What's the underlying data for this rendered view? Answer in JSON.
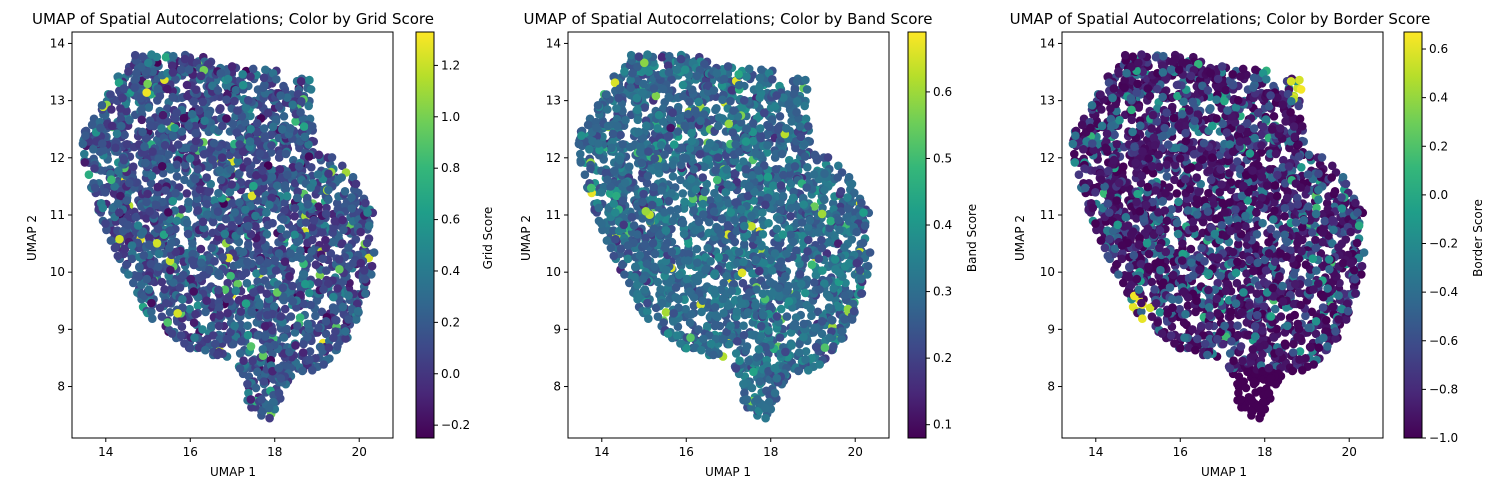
{
  "colormap": "viridis",
  "viridis_stops": [
    "#440154",
    "#482878",
    "#3e4989",
    "#31688e",
    "#26828e",
    "#1f9e89",
    "#35b779",
    "#6ece58",
    "#b5de2b",
    "#fde725"
  ],
  "chart_data": [
    {
      "type": "scatter",
      "title": "UMAP of Spatial Autocorrelations; Color by Grid Score",
      "xlabel": "UMAP 1",
      "ylabel": "UMAP 2",
      "xlim": [
        13.2,
        20.8
      ],
      "ylim": [
        7.1,
        14.2
      ],
      "xticks": [
        14,
        16,
        18,
        20
      ],
      "yticks": [
        8,
        9,
        10,
        11,
        12,
        13,
        14
      ],
      "colorbar": {
        "label": "Grid Score",
        "range": [
          -0.25,
          1.33
        ],
        "ticks": [
          -0.2,
          0.0,
          0.2,
          0.4,
          0.6,
          0.8,
          1.0,
          1.2
        ]
      },
      "n_points": 2600,
      "point_color_distribution": {
        "typical": 0.15,
        "spread": 0.15,
        "min": -0.25,
        "max": 1.33
      }
    },
    {
      "type": "scatter",
      "title": "UMAP of Spatial Autocorrelations; Color by Band Score",
      "xlabel": "UMAP 1",
      "ylabel": "UMAP 2",
      "xlim": [
        13.2,
        20.8
      ],
      "ylim": [
        7.1,
        14.2
      ],
      "xticks": [
        14,
        16,
        18,
        20
      ],
      "yticks": [
        8,
        9,
        10,
        11,
        12,
        13,
        14
      ],
      "colorbar": {
        "label": "Band Score",
        "range": [
          0.08,
          0.69
        ],
        "ticks": [
          0.1,
          0.2,
          0.3,
          0.4,
          0.5,
          0.6
        ]
      },
      "n_points": 2600,
      "point_color_distribution": {
        "typical": 0.29,
        "spread": 0.05,
        "min": 0.08,
        "max": 0.69
      }
    },
    {
      "type": "scatter",
      "title": "UMAP of Spatial Autocorrelations; Color by Border Score",
      "xlabel": "UMAP 1",
      "ylabel": "UMAP 2",
      "xlim": [
        13.2,
        20.8
      ],
      "ylim": [
        7.1,
        14.2
      ],
      "xticks": [
        14,
        16,
        18,
        20
      ],
      "yticks": [
        8,
        9,
        10,
        11,
        12,
        13,
        14
      ],
      "colorbar": {
        "label": "Border Score",
        "range": [
          -1.0,
          0.67
        ],
        "ticks": [
          -1.0,
          -0.8,
          -0.6,
          -0.4,
          -0.2,
          0.0,
          0.2,
          0.4,
          0.6
        ]
      },
      "n_points": 2600,
      "point_color_distribution": {
        "typical": -0.6,
        "spread": 0.3,
        "min": -1.0,
        "max": 0.67
      }
    }
  ]
}
